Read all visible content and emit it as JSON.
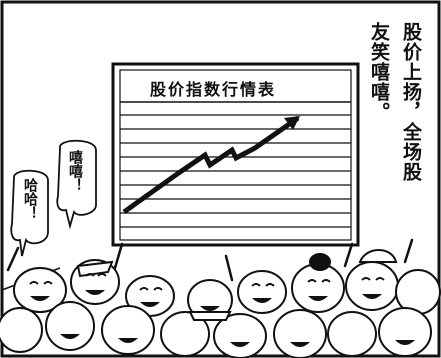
{
  "caption": {
    "line1": "股价上扬，全场股",
    "line2": "友笑嘻嘻。"
  },
  "chart": {
    "title": "股价指数行情表"
  },
  "bubbles": {
    "upper": "嘻嘻！",
    "lower": "哈哈！"
  },
  "colors": {
    "ink": "#111111",
    "paper": "#ffffff"
  }
}
